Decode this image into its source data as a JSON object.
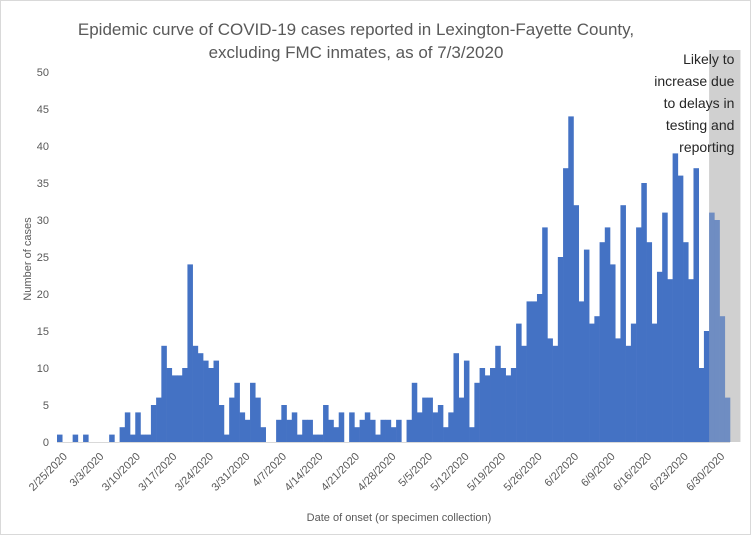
{
  "chart_data": {
    "type": "bar",
    "title_line1": "Epidemic curve of COVID-19 cases reported in Lexington-Fayette County,",
    "title_line2": "excluding FMC inmates, as of 7/3/2020",
    "xlabel": "Date of onset (or specimen collection)",
    "ylabel": "Number of cases",
    "ylim": [
      0,
      50
    ],
    "yticks": [
      0,
      5,
      10,
      15,
      20,
      25,
      30,
      35,
      40,
      45,
      50
    ],
    "grid": false,
    "bar_color": "#4472c4",
    "x_tick_labels": [
      "2/25/2020",
      "3/3/2020",
      "3/10/2020",
      "3/17/2020",
      "3/24/2020",
      "3/31/2020",
      "4/7/2020",
      "4/14/2020",
      "4/21/2020",
      "4/28/2020",
      "5/5/2020",
      "5/12/2020",
      "5/19/2020",
      "5/26/2020",
      "6/2/2020",
      "6/9/2020",
      "6/16/2020",
      "6/23/2020",
      "6/30/2020"
    ],
    "start_date": "2/24/2020",
    "values": [
      1,
      0,
      0,
      1,
      0,
      1,
      0,
      0,
      0,
      0,
      1,
      0,
      2,
      4,
      1,
      4,
      1,
      1,
      5,
      6,
      13,
      10,
      9,
      9,
      10,
      24,
      13,
      12,
      11,
      10,
      11,
      5,
      1,
      6,
      8,
      4,
      3,
      8,
      6,
      2,
      0,
      0,
      3,
      5,
      3,
      4,
      1,
      3,
      3,
      1,
      1,
      5,
      3,
      2,
      4,
      0,
      4,
      2,
      3,
      4,
      3,
      1,
      3,
      3,
      2,
      3,
      0,
      3,
      8,
      4,
      6,
      6,
      4,
      5,
      2,
      4,
      12,
      6,
      11,
      2,
      8,
      10,
      9,
      10,
      13,
      10,
      9,
      10,
      16,
      13,
      19,
      19,
      20,
      29,
      14,
      13,
      25,
      37,
      44,
      32,
      19,
      26,
      16,
      17,
      27,
      29,
      24,
      14,
      32,
      13,
      16,
      29,
      35,
      27,
      16,
      23,
      31,
      22,
      39,
      36,
      27,
      22,
      37,
      10,
      15,
      31,
      30,
      17,
      6
    ],
    "shaded_region": {
      "start_date": "6/28/2020",
      "end_date": "7/3/2020",
      "color": "#d9d9d9",
      "annotation": [
        "Likely to",
        "increase due",
        "to delays in",
        "testing and",
        "reporting"
      ]
    }
  }
}
